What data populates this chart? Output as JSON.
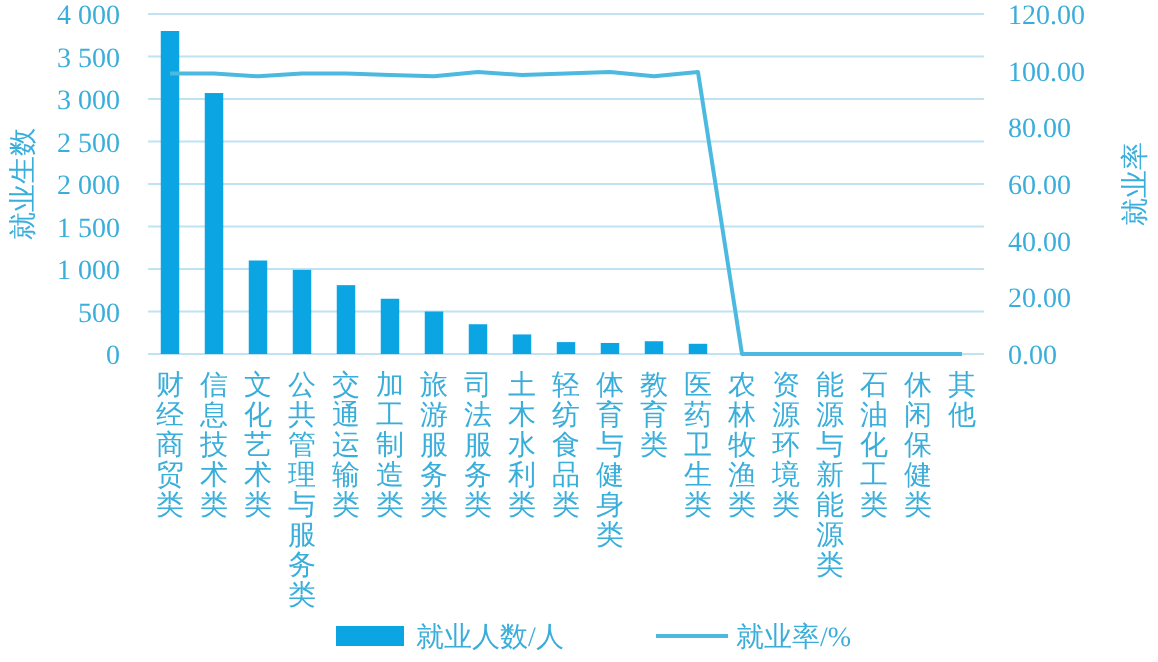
{
  "chart_data": {
    "type": "bar",
    "categories": [
      "财经商贸类",
      "信息技术类",
      "文化艺术类",
      "公共管理与服务类",
      "交通运输类",
      "加工制造类",
      "旅游服务类",
      "司法服务类",
      "土木水利类",
      "轻纺食品类",
      "体育与健身类",
      "教育类",
      "医药卫生类",
      "农林牧渔类",
      "资源环境类",
      "能源与新能源类",
      "石油化工类",
      "休闲保健类",
      "其他"
    ],
    "series": [
      {
        "name": "就业人数/人",
        "color": "#0ca5e3",
        "values": [
          3800,
          3070,
          1100,
          990,
          810,
          650,
          500,
          350,
          230,
          140,
          130,
          150,
          120,
          0,
          0,
          0,
          0,
          0,
          0
        ]
      },
      {
        "name": "就业率/%",
        "type": "line",
        "axis": "y2",
        "color": "#4cb9e0",
        "values": [
          99,
          99,
          98,
          99,
          99,
          98.5,
          98,
          99.5,
          98.5,
          99,
          99.5,
          98,
          99.5,
          0,
          0,
          0,
          0,
          0,
          0
        ]
      }
    ],
    "ylabel": "就业生数",
    "y2label": "就业率",
    "ylim": [
      0,
      4000
    ],
    "yticks": [
      0,
      500,
      {
        "value": 1000,
        "label": "1 000"
      },
      {
        "value": 1500,
        "label": "1 500"
      },
      {
        "value": 2000,
        "label": "2 000"
      },
      {
        "value": 2500,
        "label": "2 500"
      },
      {
        "value": 3000,
        "label": "3 000"
      },
      {
        "value": 3500,
        "label": "3 500"
      },
      {
        "value": 4000,
        "label": "4 000"
      }
    ],
    "y2lim": [
      0,
      120
    ],
    "y2ticks": [
      {
        "value": 0,
        "label": "0.00"
      },
      {
        "value": 20,
        "label": "20.00"
      },
      {
        "value": 40,
        "label": "40.00"
      },
      {
        "value": 60,
        "label": "60.00"
      },
      {
        "value": 80,
        "label": "80.00"
      },
      {
        "value": 100,
        "label": "100.00"
      },
      {
        "value": 120,
        "label": "120.00"
      }
    ],
    "grid": "y",
    "legend": "bottom",
    "marker": "none",
    "line_style": "solid"
  }
}
